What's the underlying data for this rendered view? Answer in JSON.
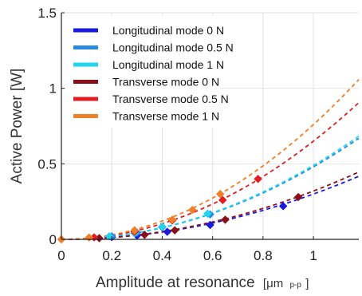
{
  "chart_data": {
    "type": "scatter",
    "xlabel": "Amplitude at resonance",
    "xunit": "[μm",
    "xunit_sub": "p-p",
    "xunit_close": "]",
    "ylabel": "Active Power [W]",
    "xlim": [
      0,
      1.18
    ],
    "ylim": [
      0,
      1.5
    ],
    "xticks": [
      0,
      0.2,
      0.4,
      0.6,
      0.8,
      1
    ],
    "xtick_labels": [
      "0",
      "0.2",
      "0.4",
      "0.6",
      "0.8",
      "1"
    ],
    "yticks": [
      0,
      0.5,
      1,
      1.5
    ],
    "ytick_labels": [
      "0",
      "0.5",
      "1",
      "1.5"
    ],
    "grid": true,
    "legend_position": "top-left",
    "fit": "dashed power-law trend per series",
    "series": [
      {
        "name": "Longitudinal mode 0 N",
        "color": "#1a1adc",
        "points": [
          [
            0.0,
            0.0
          ],
          [
            0.2,
            0.015
          ],
          [
            0.3,
            0.025
          ],
          [
            0.42,
            0.05
          ],
          [
            0.59,
            0.095
          ],
          [
            0.88,
            0.22
          ]
        ],
        "fit_coef": 0.3,
        "fit_exp": 2
      },
      {
        "name": "Longitudinal mode 0.5 N",
        "color": "#2a8ae0",
        "points": [
          [
            0.0,
            0.0
          ],
          [
            0.2,
            0.02
          ],
          [
            0.3,
            0.045
          ],
          [
            0.4,
            0.08
          ],
          [
            0.59,
            0.165
          ]
        ],
        "fit_coef": 0.48,
        "fit_exp": 2
      },
      {
        "name": "Longitudinal mode 1 N",
        "color": "#22d5ec",
        "points": [
          [
            0.0,
            0.0
          ],
          [
            0.19,
            0.02
          ],
          [
            0.29,
            0.04
          ],
          [
            0.4,
            0.085
          ],
          [
            0.58,
            0.17
          ]
        ],
        "fit_coef": 0.49,
        "fit_exp": 2
      },
      {
        "name": "Transverse mode 0 N",
        "color": "#8a0f1a",
        "points": [
          [
            0.0,
            0.0
          ],
          [
            0.15,
            0.008
          ],
          [
            0.33,
            0.03
          ],
          [
            0.45,
            0.06
          ],
          [
            0.65,
            0.13
          ],
          [
            0.94,
            0.28
          ]
        ],
        "fit_coef": 0.32,
        "fit_exp": 2
      },
      {
        "name": "Transverse mode 0.5 N",
        "color": "#e01e22",
        "points": [
          [
            0.0,
            0.0
          ],
          [
            0.13,
            0.013
          ],
          [
            0.29,
            0.05
          ],
          [
            0.44,
            0.125
          ],
          [
            0.64,
            0.26
          ],
          [
            0.78,
            0.4
          ]
        ],
        "fit_coef": 0.65,
        "fit_exp": 2
      },
      {
        "name": "Transverse mode 1 N",
        "color": "#f07f2a",
        "points": [
          [
            0.0,
            0.0
          ],
          [
            0.11,
            0.012
          ],
          [
            0.29,
            0.06
          ],
          [
            0.44,
            0.13
          ],
          [
            0.52,
            0.195
          ],
          [
            0.63,
            0.3
          ]
        ],
        "fit_coef": 0.76,
        "fit_exp": 2
      }
    ]
  }
}
